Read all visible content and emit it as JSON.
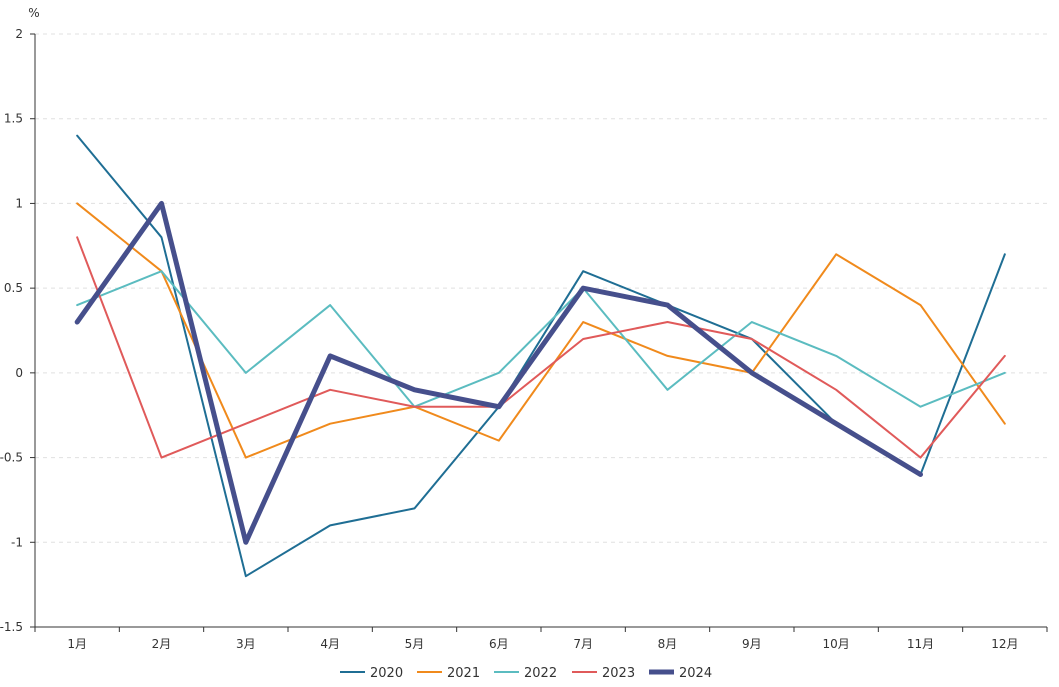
{
  "chart_data": {
    "type": "line",
    "unit_label": "%",
    "categories": [
      "1月",
      "2月",
      "3月",
      "4月",
      "5月",
      "6月",
      "7月",
      "8月",
      "9月",
      "10月",
      "11月",
      "12月"
    ],
    "ylim": [
      -1.5,
      2
    ],
    "yticks": [
      -1.5,
      -1,
      -0.5,
      0,
      0.5,
      1,
      1.5,
      2
    ],
    "ytick_labels": [
      "-1.5",
      "-1",
      "-0.5",
      "0",
      "0.5",
      "1",
      "1.5",
      "2"
    ],
    "grid": true,
    "legend_position": "bottom-center",
    "series": [
      {
        "name": "2020",
        "color": "#1f6e94",
        "emphasis": false,
        "values": [
          1.4,
          0.8,
          -1.2,
          -0.9,
          -0.8,
          -0.2,
          0.6,
          0.4,
          0.2,
          -0.3,
          -0.6,
          0.7
        ]
      },
      {
        "name": "2021",
        "color": "#f08a1c",
        "emphasis": false,
        "values": [
          1.0,
          0.6,
          -0.5,
          -0.3,
          -0.2,
          -0.4,
          0.3,
          0.1,
          0.0,
          0.7,
          0.4,
          -0.3
        ]
      },
      {
        "name": "2022",
        "color": "#5bbcc0",
        "emphasis": false,
        "values": [
          0.4,
          0.6,
          0.0,
          0.4,
          -0.2,
          0.0,
          0.5,
          -0.1,
          0.3,
          0.1,
          -0.2,
          0.0
        ]
      },
      {
        "name": "2023",
        "color": "#e05a5a",
        "emphasis": false,
        "values": [
          0.8,
          -0.5,
          -0.3,
          -0.1,
          -0.2,
          -0.2,
          0.2,
          0.3,
          0.2,
          -0.1,
          -0.5,
          0.1
        ]
      },
      {
        "name": "2024",
        "color": "#464f8c",
        "emphasis": true,
        "values": [
          0.3,
          1.0,
          -1.0,
          0.1,
          -0.1,
          -0.2,
          0.5,
          0.4,
          0.0,
          -0.3,
          -0.6,
          null
        ]
      }
    ]
  }
}
